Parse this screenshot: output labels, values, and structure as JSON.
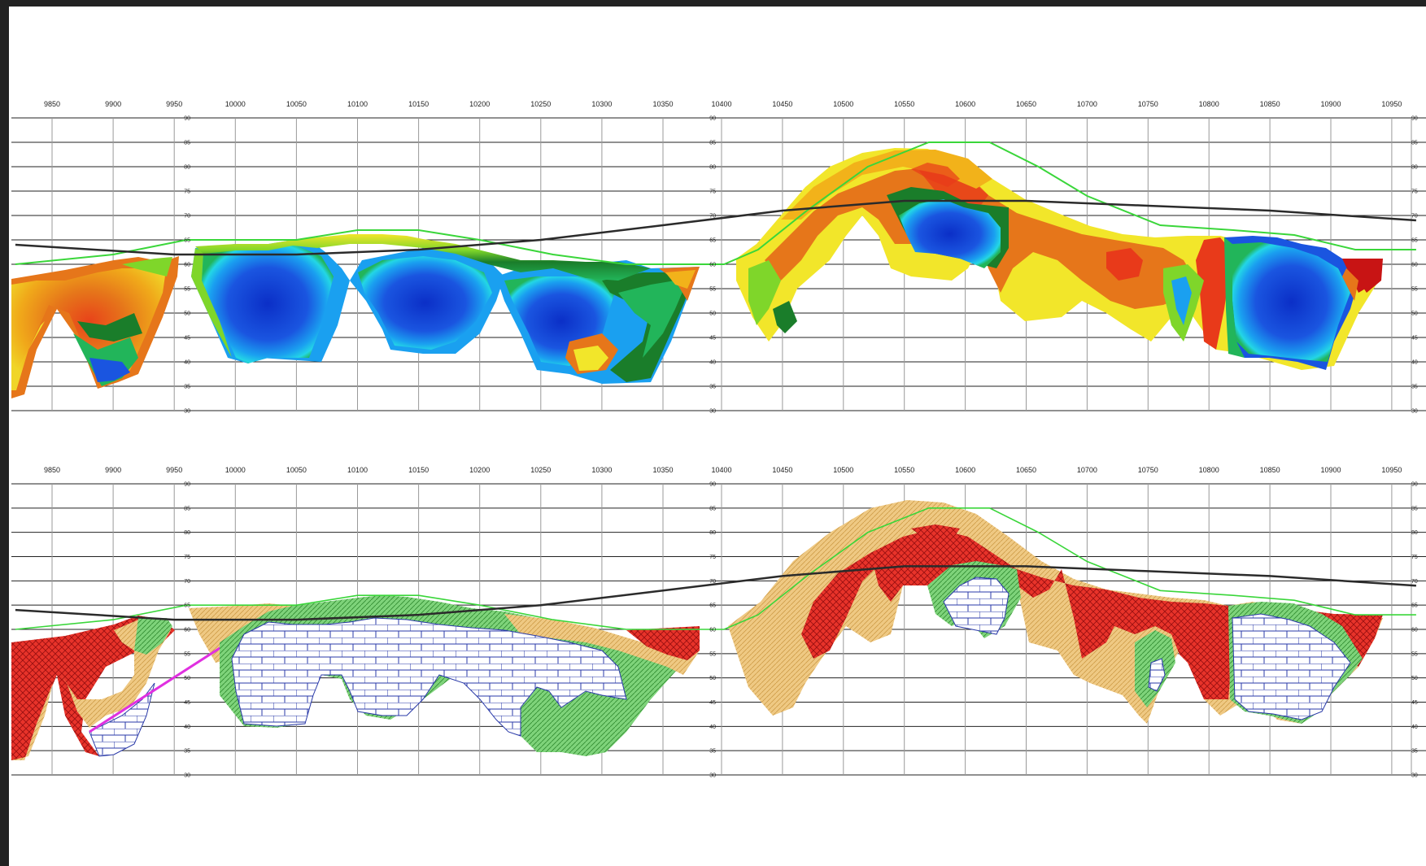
{
  "colors": {
    "frame": "#222222",
    "grid_major": "#222222",
    "grid_minor": "#9a9a9a",
    "ground_line": "#3ad63a",
    "water_table": "#2b2b2b",
    "fault_line": "#e030e0",
    "res_scale": [
      "#0b2fc7",
      "#1a55e0",
      "#1aa0f0",
      "#23d6e6",
      "#22b55a",
      "#1a7d2a",
      "#7fd62a",
      "#f2e62a",
      "#f2b21a",
      "#e6761a",
      "#e83a1a",
      "#c81414"
    ],
    "geo_red": "#e8332a",
    "geo_tan": "#efc983",
    "geo_green": "#7ed37a",
    "geo_limestone": "#ffffff",
    "geo_limestone_line": "#2a3aa8"
  },
  "panels": [
    {
      "id": "resistivity",
      "x_ticks_left": [
        "9850",
        "9900",
        "9950",
        "10000",
        "10050",
        "10100",
        "10150",
        "10200",
        "10250",
        "10300",
        "10350"
      ],
      "x_ticks_right": [
        "10400",
        "10450",
        "10500",
        "10550",
        "10600",
        "10650",
        "10700",
        "10750",
        "10800",
        "10850",
        "10900",
        "10950"
      ],
      "y_ticks": [
        "90",
        "85",
        "80",
        "75",
        "70",
        "65",
        "60",
        "55",
        "50",
        "45",
        "40",
        "35",
        "30"
      ]
    },
    {
      "id": "interpretation",
      "x_ticks_left": [
        "9850",
        "9900",
        "9950",
        "10000",
        "10050",
        "10100",
        "10150",
        "10200",
        "10250",
        "10300",
        "10350"
      ],
      "x_ticks_right": [
        "10400",
        "10450",
        "10500",
        "10550",
        "10600",
        "10650",
        "10700",
        "10750",
        "10800",
        "10850",
        "10900",
        "10950"
      ],
      "y_ticks": [
        "90",
        "85",
        "80",
        "75",
        "70",
        "65",
        "60",
        "55",
        "50",
        "45",
        "40",
        "35",
        "30"
      ]
    }
  ],
  "sections": {
    "left_range": [
      9820,
      10400
    ],
    "right_range": [
      10400,
      10970
    ],
    "elev_range": [
      30,
      90
    ]
  },
  "ground_profile": [
    [
      9820,
      60
    ],
    [
      9900,
      62
    ],
    [
      9960,
      65
    ],
    [
      10050,
      65
    ],
    [
      10100,
      67
    ],
    [
      10150,
      67
    ],
    [
      10200,
      65
    ],
    [
      10260,
      62
    ],
    [
      10320,
      60
    ],
    [
      10400,
      60
    ],
    [
      10430,
      63
    ],
    [
      10470,
      71
    ],
    [
      10520,
      80
    ],
    [
      10570,
      85
    ],
    [
      10620,
      85
    ],
    [
      10660,
      80
    ],
    [
      10700,
      74
    ],
    [
      10760,
      68
    ],
    [
      10820,
      67
    ],
    [
      10870,
      66
    ],
    [
      10920,
      63
    ],
    [
      10970,
      63
    ]
  ],
  "water_table": [
    [
      9820,
      64
    ],
    [
      9950,
      62
    ],
    [
      10050,
      62
    ],
    [
      10150,
      63
    ],
    [
      10250,
      65
    ],
    [
      10350,
      68
    ],
    [
      10450,
      71
    ],
    [
      10550,
      73
    ],
    [
      10650,
      73
    ],
    [
      10750,
      72
    ],
    [
      10850,
      71
    ],
    [
      10970,
      69
    ]
  ]
}
